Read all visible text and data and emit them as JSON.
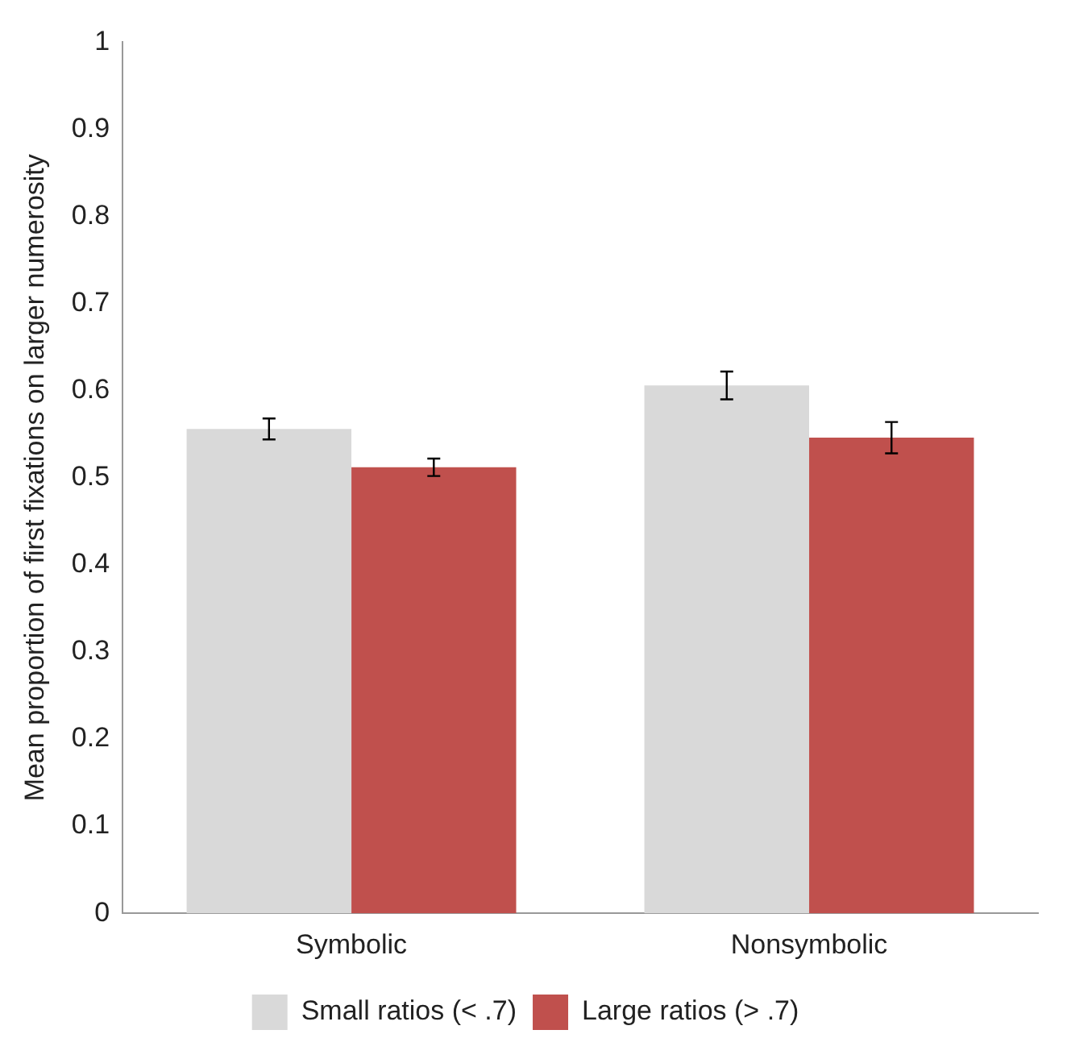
{
  "chart_data": {
    "type": "bar",
    "ylabel": "Mean proportion of first fixations on larger numerosity",
    "categories": [
      "Symbolic",
      "Nonsymbolic"
    ],
    "series": [
      {
        "name": "Small ratios (< .7)",
        "color": "#d9d9d9",
        "values": [
          0.556,
          0.606
        ],
        "errors": [
          0.012,
          0.016
        ]
      },
      {
        "name": "Large ratios (> .7)",
        "color": "#c0504d",
        "values": [
          0.512,
          0.546
        ],
        "errors": [
          0.01,
          0.018
        ]
      }
    ],
    "ylim": [
      0,
      1
    ],
    "yticks": [
      0,
      0.1,
      0.2,
      0.3,
      0.4,
      0.5,
      0.6,
      0.7,
      0.8,
      0.9,
      1
    ],
    "grid": false,
    "legend": "bottom"
  }
}
